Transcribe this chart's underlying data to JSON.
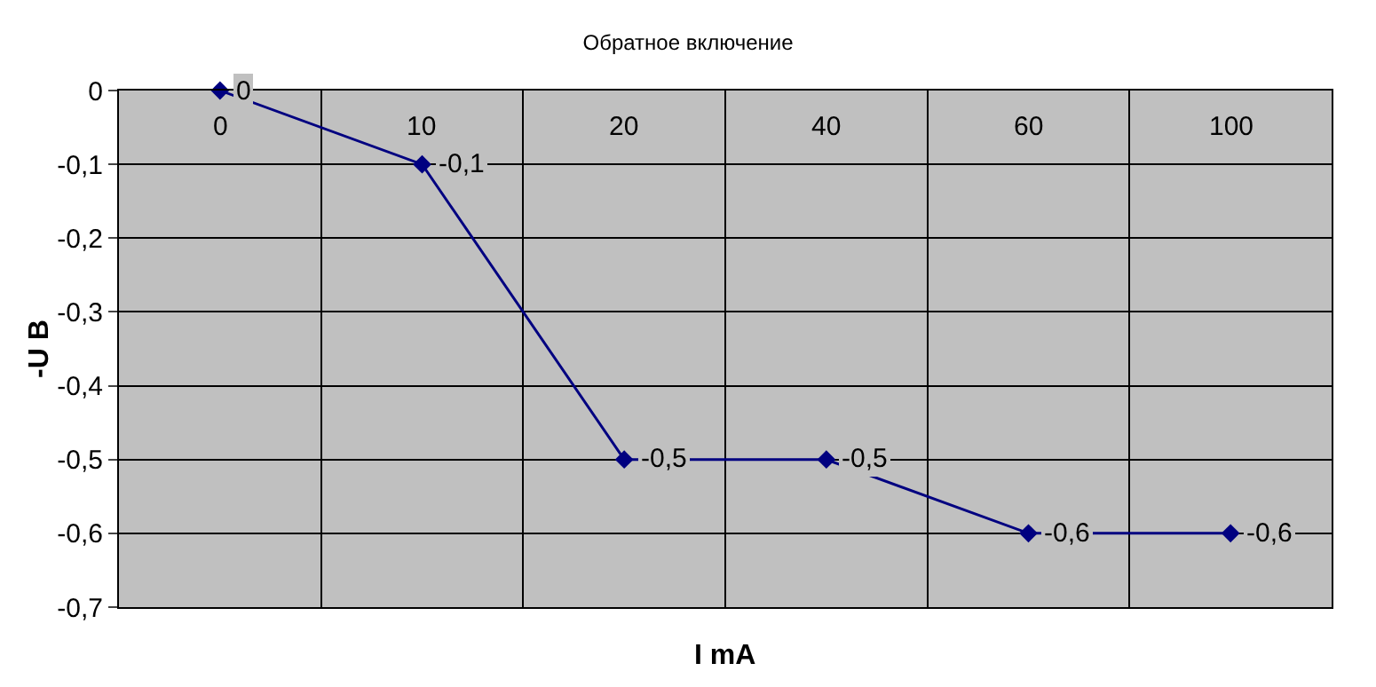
{
  "chart_data": {
    "type": "line",
    "title": "Обратное включение",
    "xlabel": "I mA",
    "ylabel": "-U B",
    "categories": [
      "0",
      "10",
      "20",
      "40",
      "60",
      "100"
    ],
    "series": [
      {
        "color": "#000080",
        "values": [
          0,
          -0.1,
          -0.5,
          -0.5,
          -0.6,
          -0.6
        ],
        "value_labels": [
          "0",
          "-0,1",
          "-0,5",
          "-0,5",
          "-0,6",
          "-0,6"
        ]
      }
    ],
    "ylim": [
      -0.7,
      0
    ],
    "yticks": [
      {
        "value": -0.7,
        "label": "-0,7"
      },
      {
        "value": -0.6,
        "label": "-0,6"
      },
      {
        "value": -0.5,
        "label": "-0,5"
      },
      {
        "value": -0.4,
        "label": "-0,4"
      },
      {
        "value": -0.3,
        "label": "-0,3"
      },
      {
        "value": -0.2,
        "label": "-0,2"
      },
      {
        "value": -0.1,
        "label": "-0,1"
      },
      0
    ],
    "grid": true,
    "marker": "diamond",
    "line_style": "solid"
  }
}
